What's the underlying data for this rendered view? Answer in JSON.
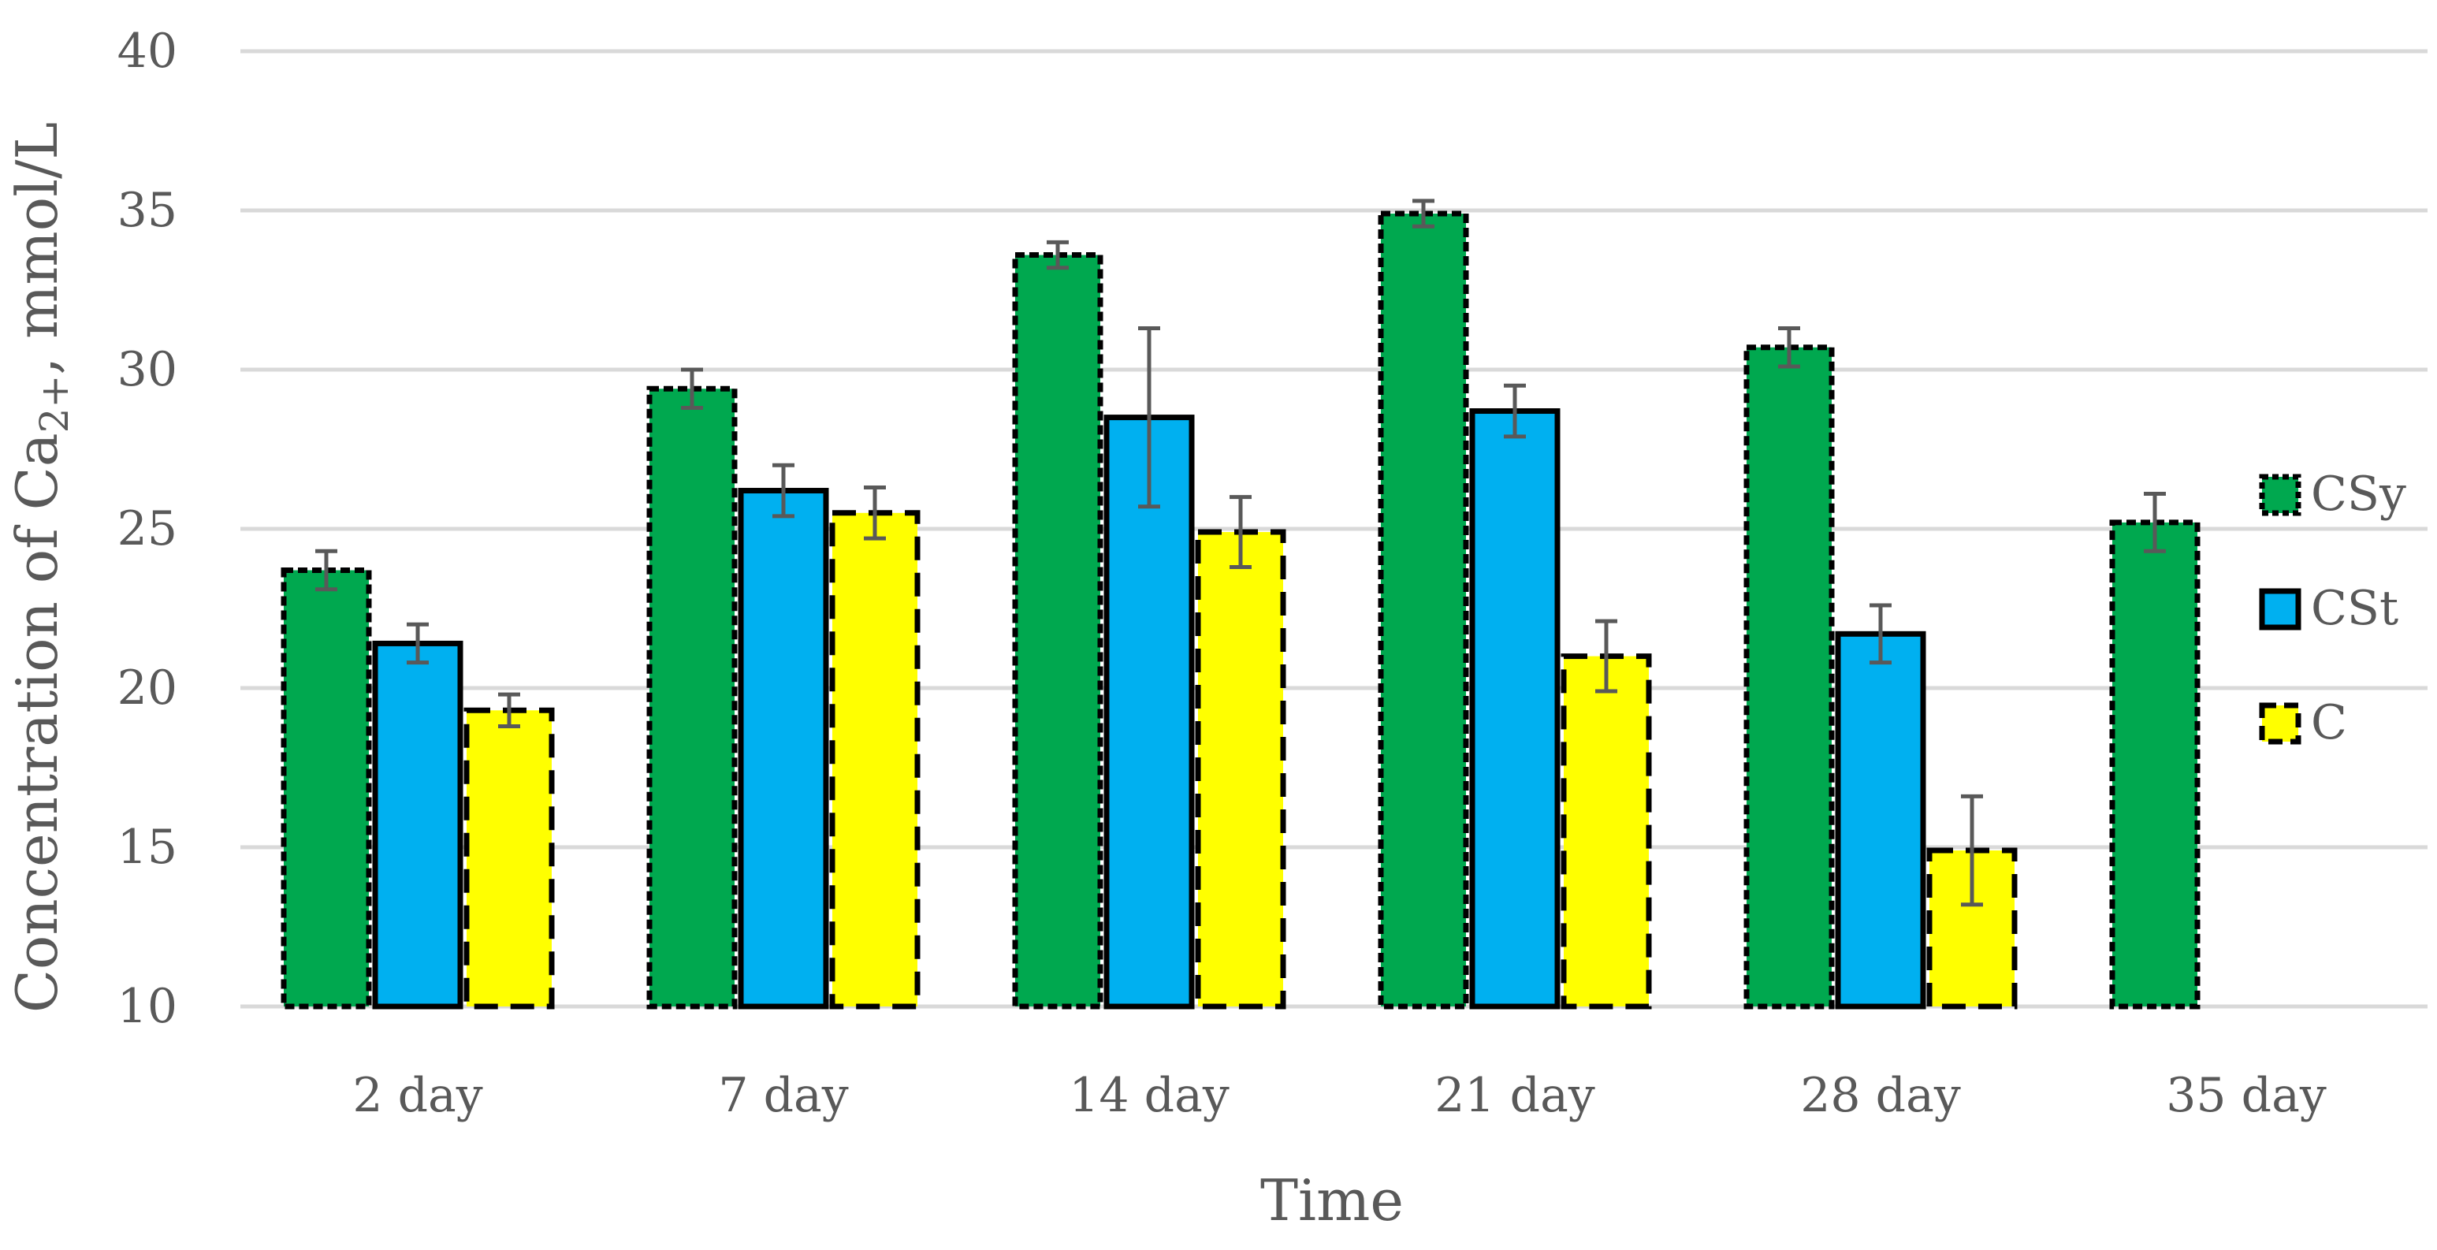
{
  "chart_data": {
    "type": "bar",
    "title": "",
    "xlabel": "Time",
    "ylabel_main": "Concentration of Ca",
    "ylabel_sub": "2+",
    "ylabel_tail": ", mmol/L",
    "ylim": [
      10,
      40
    ],
    "yticks": [
      10,
      15,
      20,
      25,
      30,
      35,
      40
    ],
    "grid": true,
    "legend_position": "right",
    "categories": [
      "2 day",
      "7 day",
      "14 day",
      "21 day",
      "28 day",
      "35 day"
    ],
    "series": [
      {
        "name": "CSy",
        "color": "#00A84F",
        "border": "dotted",
        "values": [
          23.7,
          29.4,
          33.6,
          34.9,
          30.7,
          25.2
        ],
        "errors": [
          0.6,
          0.6,
          0.4,
          0.4,
          0.6,
          0.9
        ]
      },
      {
        "name": "CSt",
        "color": "#00B0F0",
        "border": "solid",
        "values": [
          21.4,
          26.2,
          28.5,
          28.7,
          21.7,
          null
        ],
        "errors": [
          0.6,
          0.8,
          2.8,
          0.8,
          0.9,
          null
        ]
      },
      {
        "name": "C",
        "color": "#FFFF00",
        "border": "dashed",
        "values": [
          19.3,
          25.5,
          24.9,
          21.0,
          14.9,
          null
        ],
        "errors": [
          0.5,
          0.8,
          1.1,
          1.1,
          1.7,
          null
        ]
      }
    ]
  }
}
